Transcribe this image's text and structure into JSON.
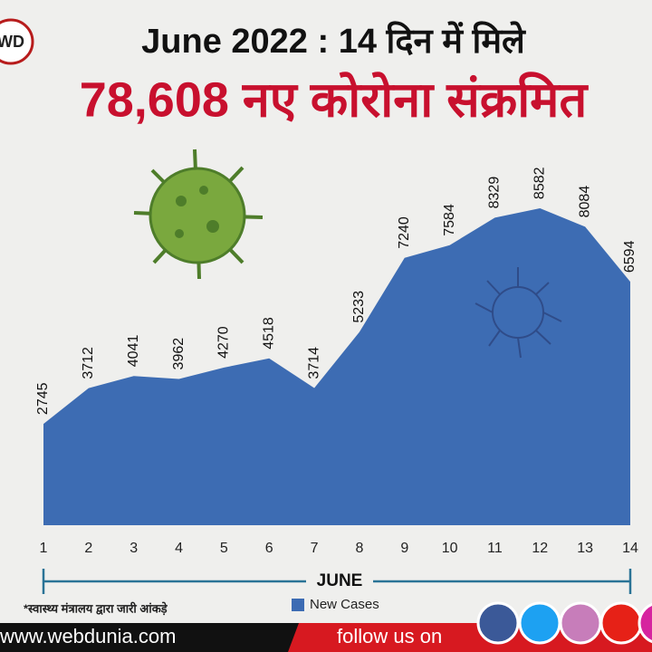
{
  "logo": "WD",
  "chart_data": {
    "type": "area",
    "title": "June 2022 : 14 दिन में मिले",
    "subtitle": "78,608 नए कोरोना संक्रमित",
    "x_label": "JUNE",
    "x": [
      1,
      2,
      3,
      4,
      5,
      6,
      7,
      8,
      9,
      10,
      11,
      12,
      13,
      14
    ],
    "xlim": [
      1,
      14
    ],
    "xticks": [
      1,
      2,
      3,
      4,
      5,
      6,
      7,
      8,
      9,
      10,
      11,
      12,
      13,
      14
    ],
    "ylim": [
      0,
      10300
    ],
    "series": [
      {
        "name": "New Cases",
        "color": "#3d6cb3",
        "values": [
          2745,
          3712,
          4041,
          3962,
          4270,
          4518,
          3714,
          5233,
          7240,
          7584,
          8329,
          8582,
          8084,
          6594
        ]
      }
    ],
    "note": "*स्वास्थ्य मंत्रालय द्वारा जारी आंकड़े"
  },
  "footer": {
    "website": "www.webdunia.com",
    "follow": "follow us on"
  }
}
